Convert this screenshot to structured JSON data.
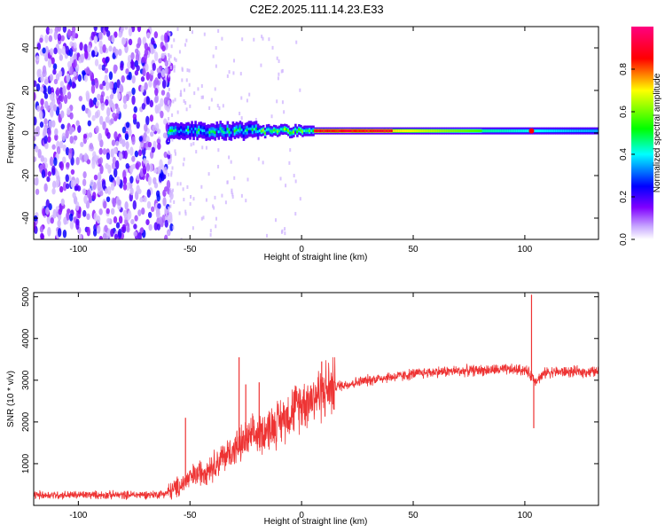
{
  "title": "C2E2.2025.111.14.23.E33",
  "colormap": [
    "#ffffff",
    "#c8a8ff",
    "#8000ff",
    "#0000ff",
    "#00ffff",
    "#00ff00",
    "#ffff00",
    "#ff8000",
    "#ff0000",
    "#ff0080"
  ],
  "trace_color": "#ee3333",
  "chart_data": [
    {
      "type": "heatmap",
      "xlabel": "Height of straight line (km)",
      "ylabel": "Frequency (Hz)",
      "xlim": [
        -120,
        133
      ],
      "ylim": [
        -50,
        50
      ],
      "xticks": [
        -100,
        -50,
        0,
        50,
        100
      ],
      "yticks": [
        -40,
        -20,
        0,
        20,
        40
      ],
      "grid": false,
      "colorbar": {
        "label": "Normalized spectral amplitude",
        "range": [
          0.0,
          1.0
        ],
        "ticks": [
          0.0,
          0.2,
          0.4,
          0.6,
          0.8
        ]
      },
      "description_features": {
        "noise_region_x": [
          -120,
          -60
        ],
        "signal_line_start_x": -60,
        "signal_frequency_hz": 1,
        "peak_region_x": [
          10,
          40
        ],
        "spike_x": 103
      }
    },
    {
      "type": "line",
      "xlabel": "Height of straight line (km)",
      "ylabel": "SNR (10 * v/v)",
      "xlim": [
        -120,
        133
      ],
      "ylim": [
        0,
        5100
      ],
      "xticks": [
        -100,
        -50,
        0,
        50,
        100
      ],
      "yticks": [
        1000,
        2000,
        3000,
        4000,
        5000
      ],
      "grid": false,
      "series": [
        {
          "x": [
            -120,
            -100,
            -80,
            -65,
            -60,
            -55,
            -50,
            -45,
            -40,
            -35,
            -30,
            -25,
            -20,
            -15,
            -10,
            -5,
            0,
            5,
            10,
            15,
            20,
            25,
            30,
            35,
            40,
            45,
            50,
            60,
            70,
            80,
            90,
            100,
            105,
            110,
            120,
            133
          ],
          "values": [
            250,
            250,
            250,
            260,
            300,
            450,
            650,
            800,
            950,
            1150,
            1350,
            1550,
            1700,
            1850,
            2000,
            2250,
            2450,
            2600,
            2750,
            2850,
            2900,
            2950,
            3000,
            3050,
            3080,
            3100,
            3150,
            3200,
            3220,
            3240,
            3250,
            3250,
            3000,
            3200,
            3200,
            3200
          ]
        }
      ],
      "spikes": [
        {
          "x": -52,
          "value": 2100
        },
        {
          "x": -28,
          "value": 3550
        },
        {
          "x": -25,
          "value": 2900
        },
        {
          "x": -19,
          "value": 2950
        },
        {
          "x": 9,
          "value": 3450
        },
        {
          "x": 103,
          "value": 5050
        },
        {
          "x": 104,
          "value": 1850
        }
      ]
    }
  ]
}
